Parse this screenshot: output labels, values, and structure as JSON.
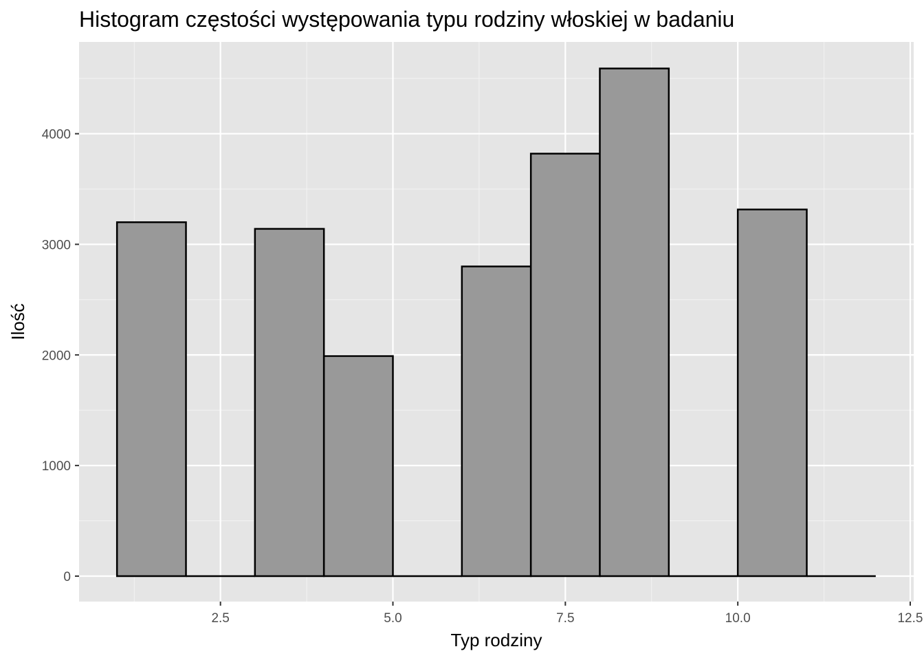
{
  "colors": {
    "panel_bg": "#e5e5e5",
    "grid_major": "#ffffff",
    "grid_minor": "#f2f2f2",
    "bar_fill": "#999999",
    "bar_stroke": "#000000",
    "tick_text": "#4d4d4d",
    "tick_mark": "#333333"
  },
  "chart_data": {
    "type": "bar",
    "title": "Histogram częstości występowania typu rodziny włoskiej w badaniu",
    "xlabel": "Typ rodziny",
    "ylabel": "Ilość",
    "xlim": [
      0.45,
      12.55
    ],
    "ylim": [
      -230,
      4830
    ],
    "x_ticks": [
      2.5,
      5.0,
      7.5,
      10.0,
      12.5
    ],
    "x_tick_labels": [
      "2.5",
      "5.0",
      "7.5",
      "10.0",
      "12.5"
    ],
    "y_ticks": [
      0,
      1000,
      2000,
      3000,
      4000
    ],
    "y_tick_labels": [
      "0",
      "1000",
      "2000",
      "3000",
      "4000"
    ],
    "grid": true,
    "bins": [
      {
        "start": 1,
        "end": 2,
        "value": 3200
      },
      {
        "start": 2,
        "end": 3,
        "value": 0
      },
      {
        "start": 3,
        "end": 4,
        "value": 3140
      },
      {
        "start": 4,
        "end": 5,
        "value": 1990
      },
      {
        "start": 5,
        "end": 6,
        "value": 0
      },
      {
        "start": 6,
        "end": 7,
        "value": 2800
      },
      {
        "start": 7,
        "end": 8,
        "value": 3820
      },
      {
        "start": 8,
        "end": 9,
        "value": 4590
      },
      {
        "start": 9,
        "end": 10,
        "value": 0
      },
      {
        "start": 10,
        "end": 11,
        "value": 3315
      },
      {
        "start": 11,
        "end": 12,
        "value": 0
      }
    ]
  }
}
